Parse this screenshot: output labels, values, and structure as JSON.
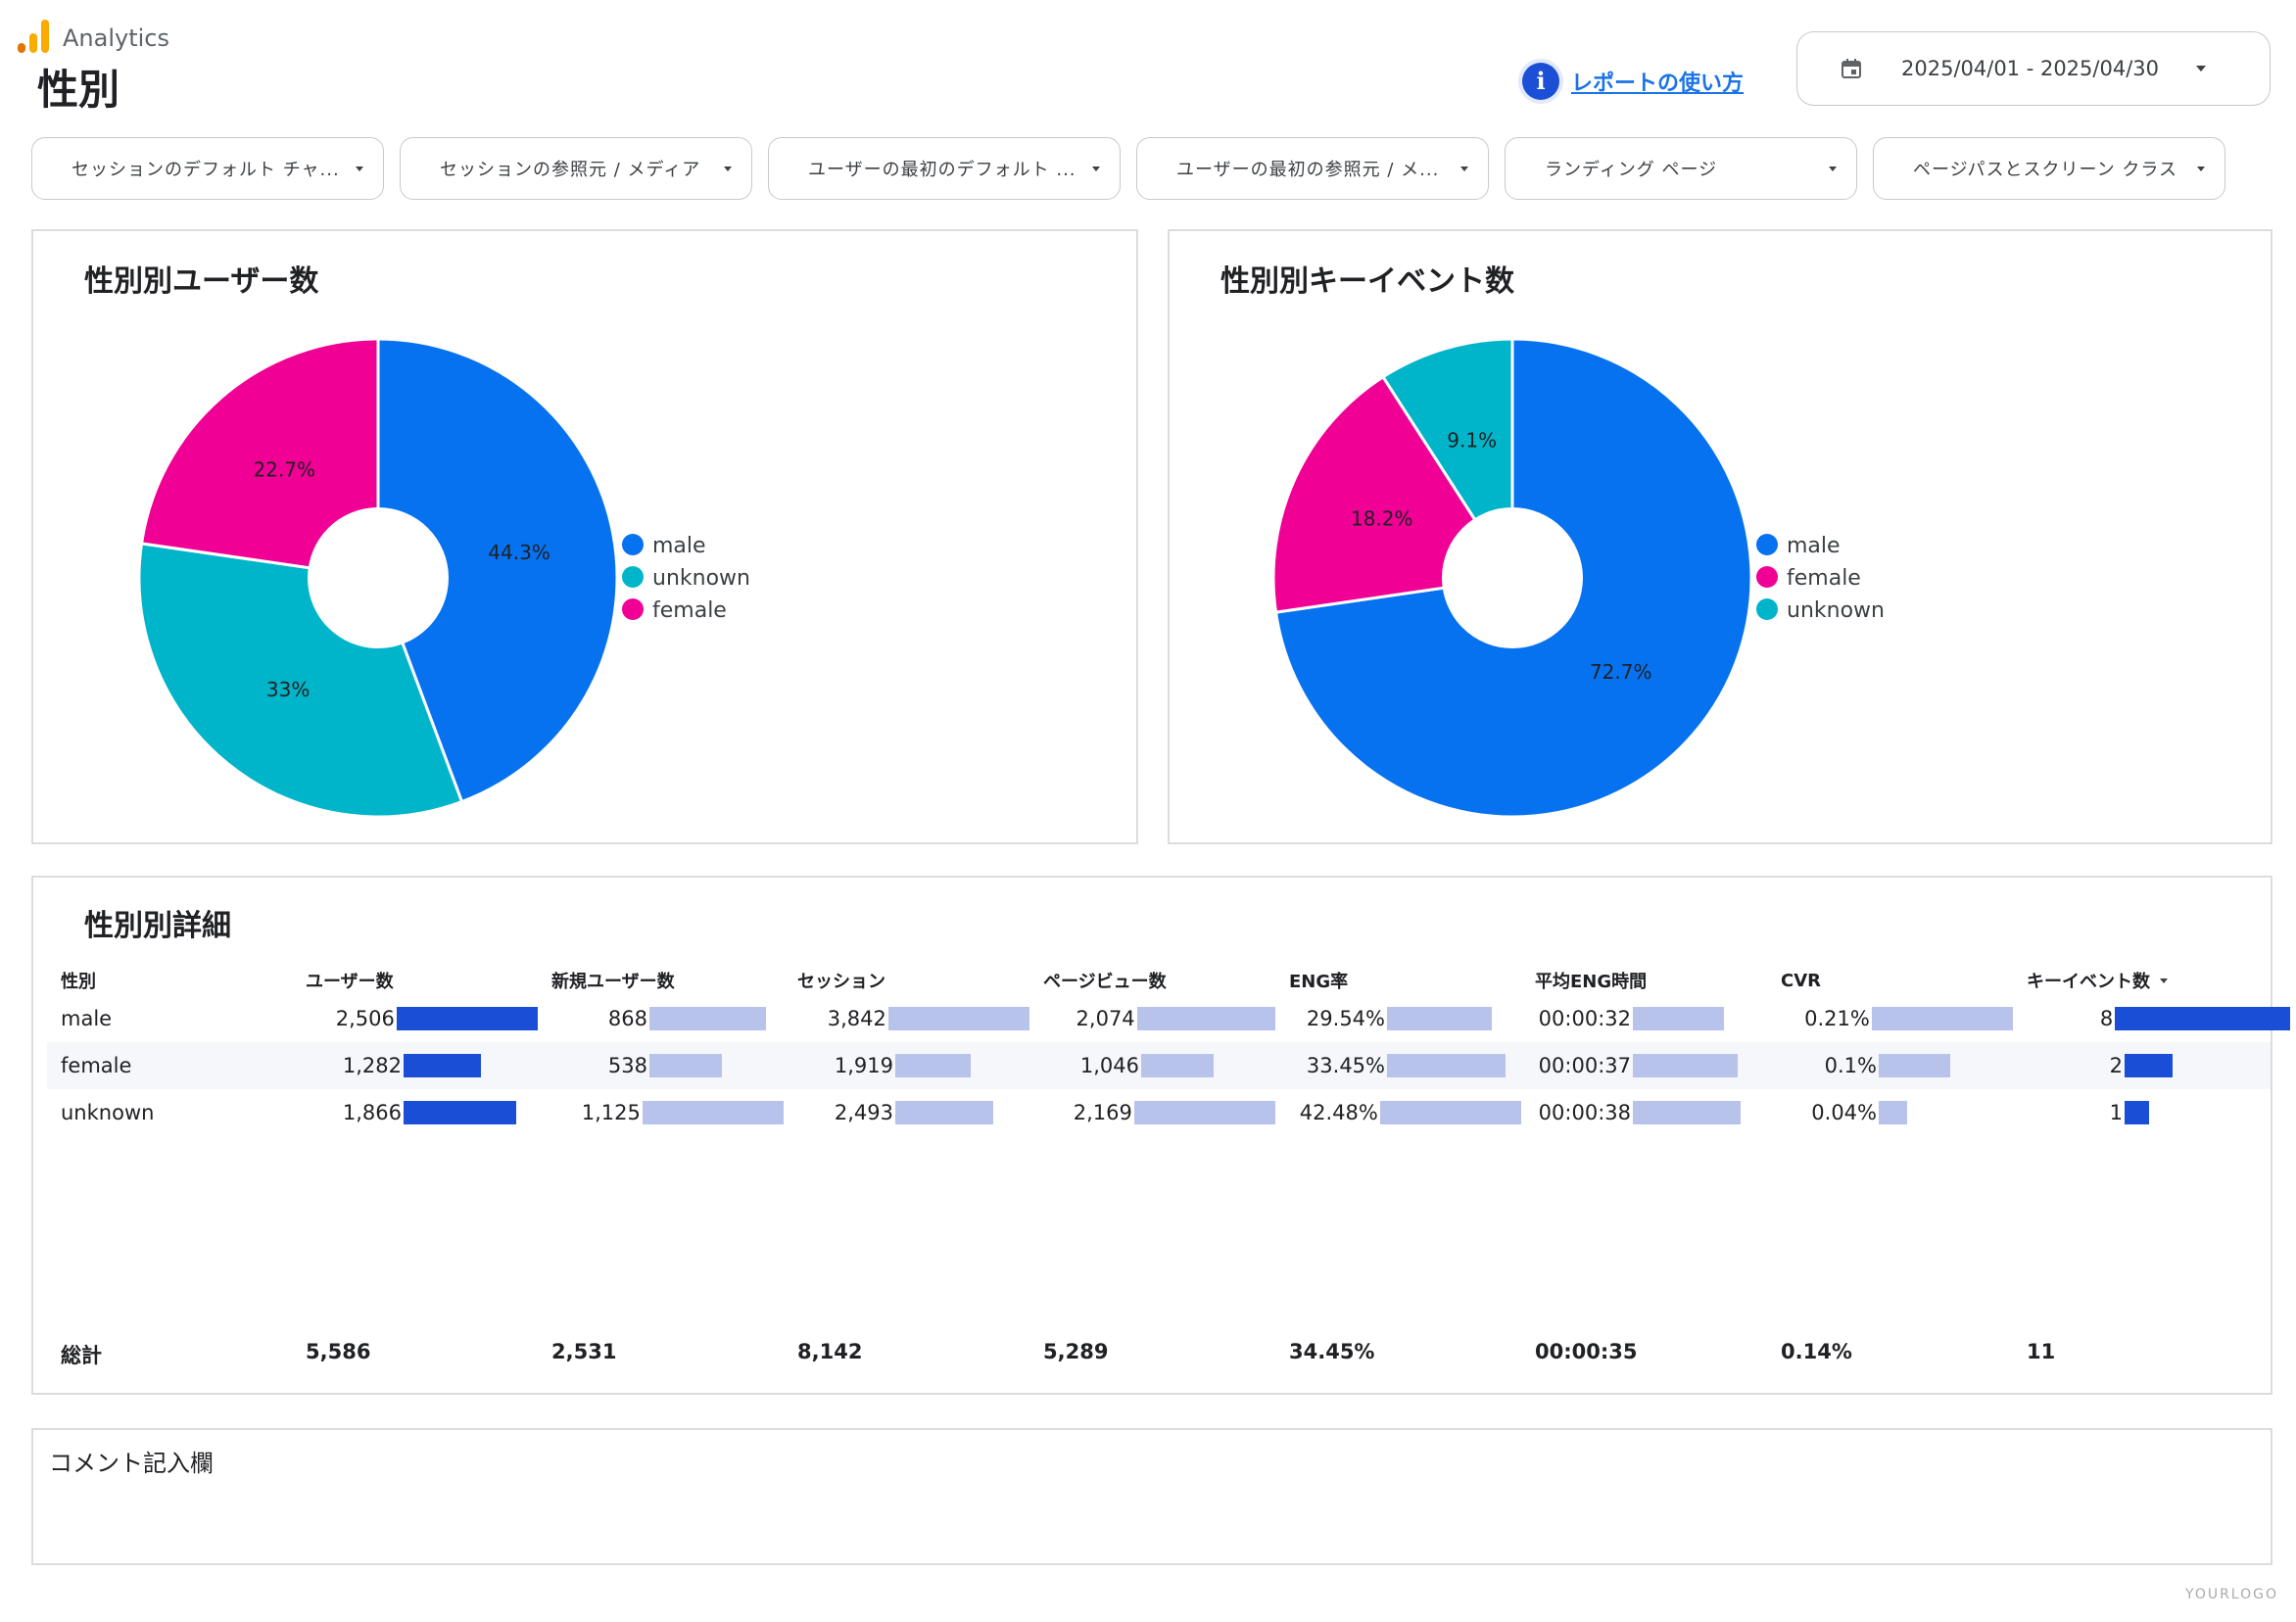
{
  "app": {
    "name": "Analytics",
    "logo_colors": [
      "#f9ab00",
      "#e37400"
    ]
  },
  "page": {
    "title": "性別"
  },
  "help": {
    "icon": "info-icon",
    "link": "レポートの使い方"
  },
  "date_range": {
    "icon": "calendar-icon",
    "value": "2025/04/01 - 2025/04/30"
  },
  "filters": [
    "セッションのデフォルト チャ...",
    "セッションの参照元 / メディア",
    "ユーザーの最初のデフォルト ...",
    "ユーザーの最初の参照元 / メ...",
    "ランディング ページ",
    "ページパスとスクリーン クラス"
  ],
  "colors": {
    "male": "#0672ef",
    "unknown": "#00b5c9",
    "female": "#f00095",
    "bar_dark": "#1a4ed6",
    "bar_light": "#b8c3ec"
  },
  "chart_data": [
    {
      "type": "pie",
      "title": "性別別ユーザー数",
      "categories": [
        "male",
        "unknown",
        "female"
      ],
      "values": [
        44.3,
        33,
        22.7
      ],
      "labels": [
        "44.3%",
        "33%",
        "22.7%"
      ],
      "legend": [
        "male",
        "unknown",
        "female"
      ],
      "legend_position": "right"
    },
    {
      "type": "pie",
      "title": "性別別キーイベント数",
      "categories": [
        "male",
        "female",
        "unknown"
      ],
      "values": [
        72.7,
        18.2,
        9.1
      ],
      "labels": [
        "72.7%",
        "18.2%",
        "9.1%"
      ],
      "legend": [
        "male",
        "female",
        "unknown"
      ],
      "legend_position": "right"
    }
  ],
  "table": {
    "title": "性別別詳細",
    "headers": [
      "性別",
      "ユーザー数",
      "新規ユーザー数",
      "セッション",
      "ページビュー数",
      "ENG率",
      "平均ENG時間",
      "CVR",
      "キーイベント数"
    ],
    "sort_column": "キーイベント数",
    "rows": [
      {
        "name": "male",
        "cells": [
          "2,506",
          "868",
          "3,842",
          "2,074",
          "29.54%",
          "00:00:32",
          "0.21%",
          "8"
        ],
        "bars": [
          2506,
          868,
          3842,
          2074,
          29.54,
          32,
          0.21,
          8
        ]
      },
      {
        "name": "female",
        "cells": [
          "1,282",
          "538",
          "1,919",
          "1,046",
          "33.45%",
          "00:00:37",
          "0.1%",
          "2"
        ],
        "bars": [
          1282,
          538,
          1919,
          1046,
          33.45,
          37,
          0.1,
          2
        ]
      },
      {
        "name": "unknown",
        "cells": [
          "1,866",
          "1,125",
          "2,493",
          "2,169",
          "42.48%",
          "00:00:38",
          "0.04%",
          "1"
        ],
        "bars": [
          1866,
          1125,
          2493,
          2169,
          42.48,
          38,
          0.04,
          1
        ]
      }
    ],
    "totals_label": "総計",
    "totals": [
      "5,586",
      "2,531",
      "8,142",
      "5,289",
      "34.45%",
      "00:00:35",
      "0.14%",
      "11"
    ]
  },
  "comment": {
    "label": "コメント記入欄"
  },
  "watermark": "YOURLOGO"
}
